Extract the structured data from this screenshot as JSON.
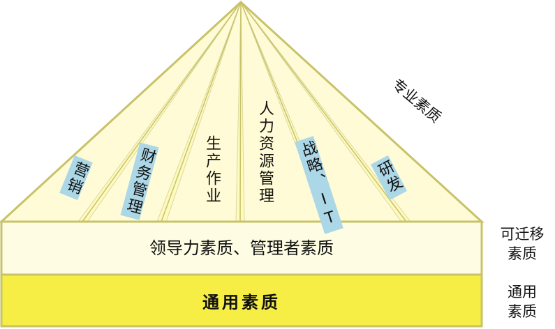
{
  "pyramid": {
    "top_label": "专业素质",
    "segments": [
      {
        "id": "marketing",
        "label": "营销",
        "boxed": true
      },
      {
        "id": "finance",
        "label": "财务管理",
        "boxed": true
      },
      {
        "id": "production",
        "label": "生产作业",
        "boxed": false
      },
      {
        "id": "hr",
        "label": "人力资源管理",
        "boxed": false
      },
      {
        "id": "strategy",
        "label": "战略、IT",
        "boxed": true
      },
      {
        "id": "rnd",
        "label": "研发",
        "boxed": true
      }
    ]
  },
  "bands": {
    "leadership": "领导力素质、管理者素质",
    "general": "通用素质"
  },
  "side_labels": {
    "transferable": "可迁移\n素质",
    "general": "通用\n素质"
  },
  "colors": {
    "pyramid_fill": "#fefbd6",
    "ray_fill": "#fdf9bf",
    "band_mid_fill": "#fefde4",
    "band_bottom_fill": "#f6ee45",
    "outline": "#c8c268",
    "label_box": "#acd7e6"
  }
}
